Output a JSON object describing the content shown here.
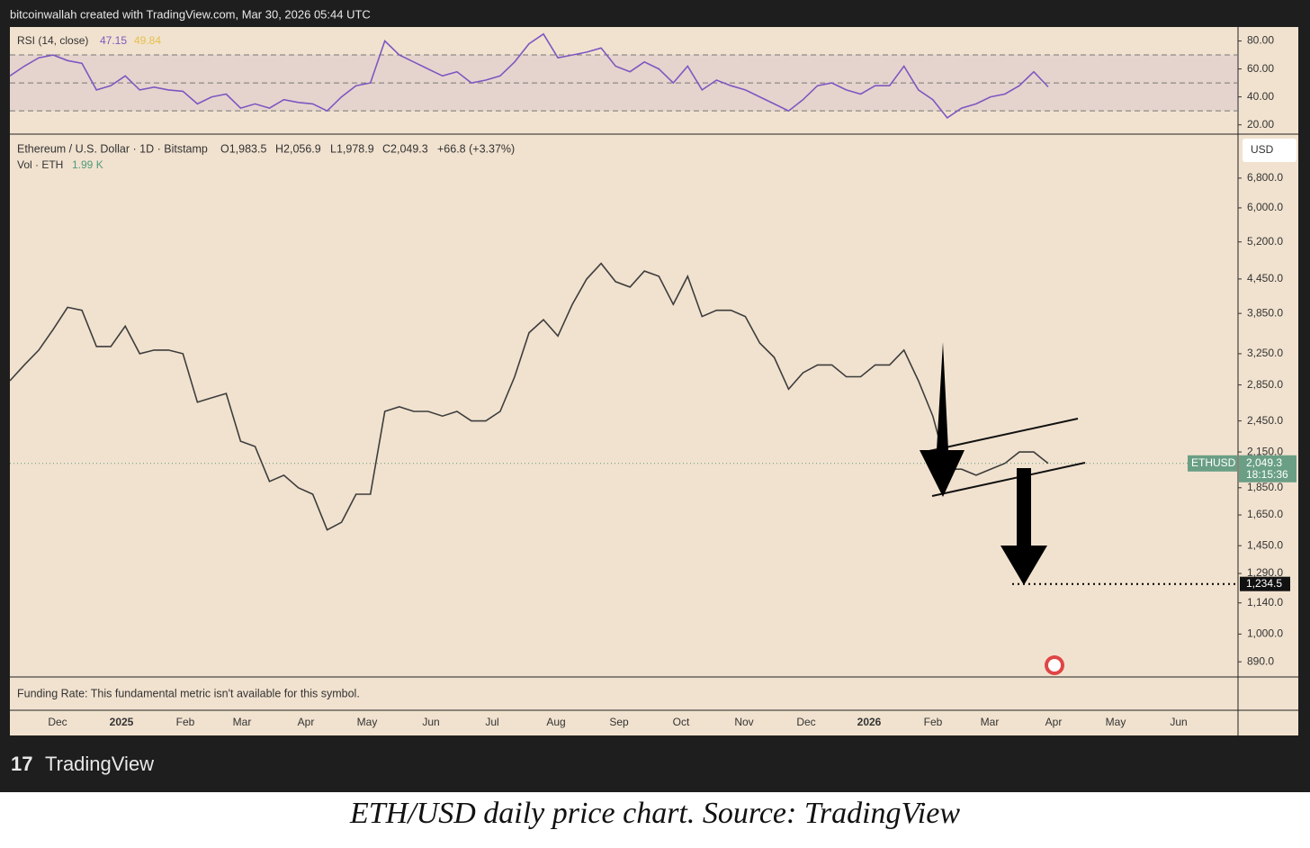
{
  "header": {
    "credit": "bitcoinwallah created with TradingView.com, Mar 30, 2026 05:44 UTC"
  },
  "chart_data": [
    {
      "type": "line",
      "title": "RSI (14, close)",
      "ma_value": 49.84,
      "color": "#7e57c2",
      "ma_color": "#e6c04a",
      "values": [
        55,
        62,
        68,
        70,
        66,
        64,
        45,
        48,
        55,
        45,
        47,
        45,
        44,
        35,
        40,
        42,
        32,
        35,
        32,
        38,
        36,
        35,
        30,
        40,
        48,
        50,
        80,
        70,
        65,
        60,
        55,
        58,
        50,
        52,
        55,
        65,
        78,
        85,
        68,
        70,
        72,
        75,
        62,
        58,
        65,
        60,
        50,
        62,
        45,
        52,
        48,
        45,
        40,
        35,
        30,
        38,
        48,
        50,
        45,
        42,
        48,
        48,
        62,
        45,
        38,
        25,
        32,
        35,
        40,
        42,
        48,
        58,
        47.15
      ],
      "ylim": [
        14,
        90
      ],
      "yticks": [
        {
          "value": 20,
          "label": "20.00"
        },
        {
          "value": 40,
          "label": "40.00"
        },
        {
          "value": 60,
          "label": "60.00"
        },
        {
          "value": 80,
          "label": "80.00"
        }
      ],
      "bands": [
        30,
        50,
        70
      ]
    },
    {
      "type": "line",
      "title": "Ethereum / U.S. Dollar · 1D · Bitstamp",
      "color": "#3d3d3d",
      "log_scale": true,
      "legend": {
        "open": "O1,983.5",
        "high": "H2,056.9",
        "low": "L1,978.9",
        "close": "C2,049.3",
        "change": "+66.8 (+3.37%)"
      },
      "volume_label": "Vol · ETH",
      "volume_value": "1.99 K",
      "currency": "USD",
      "symbol": "ETHUSD",
      "last_price": {
        "value": 2049.3,
        "label": "2,049.3"
      },
      "countdown": "18:15:36",
      "target": {
        "value": 1234.5,
        "label": "1,234.5"
      },
      "values": [
        2900,
        3100,
        3300,
        3600,
        3950,
        3900,
        3350,
        3350,
        3650,
        3250,
        3300,
        3300,
        3250,
        2650,
        2700,
        2750,
        2250,
        2200,
        1900,
        1950,
        1850,
        1800,
        1550,
        1600,
        1800,
        1800,
        2550,
        2600,
        2550,
        2550,
        2500,
        2550,
        2450,
        2450,
        2550,
        2950,
        3550,
        3750,
        3500,
        4000,
        4450,
        4750,
        4400,
        4300,
        4600,
        4500,
        4000,
        4500,
        3800,
        3900,
        3900,
        3800,
        3400,
        3200,
        2800,
        3000,
        3100,
        3100,
        2950,
        2950,
        3100,
        3100,
        3300,
        2900,
        2500,
        2000,
        2000,
        1950,
        2000,
        2050,
        2150,
        2150,
        2049.3
      ],
      "ylim": [
        835,
        8150
      ],
      "yticks": [
        {
          "value": 890,
          "label": "890.0"
        },
        {
          "value": 1000,
          "label": "1,000.0"
        },
        {
          "value": 1140,
          "label": "1,140.0"
        },
        {
          "value": 1290,
          "label": "1,290.0"
        },
        {
          "value": 1450,
          "label": "1,450.0"
        },
        {
          "value": 1650,
          "label": "1,650.0"
        },
        {
          "value": 1850,
          "label": "1,850.0"
        },
        {
          "value": 2150,
          "label": "2,150.0"
        },
        {
          "value": 2450,
          "label": "2,450.0"
        },
        {
          "value": 2850,
          "label": "2,850.0"
        },
        {
          "value": 3250,
          "label": "3,250.0"
        },
        {
          "value": 3850,
          "label": "3,850.0"
        },
        {
          "value": 4450,
          "label": "4,450.0"
        },
        {
          "value": 5200,
          "label": "5,200.0"
        },
        {
          "value": 6000,
          "label": "6,000.0"
        },
        {
          "value": 6800,
          "label": "6,800.0"
        }
      ],
      "x_labels": [
        "Dec",
        "2025",
        "Feb",
        "Mar",
        "Apr",
        "May",
        "Jun",
        "Jul",
        "Aug",
        "Sep",
        "Oct",
        "Nov",
        "Dec",
        "2026",
        "Feb",
        "Mar",
        "Apr",
        "May",
        "Jun"
      ],
      "funding_note": "Funding Rate: This fundamental metric isn't available for this symbol."
    }
  ],
  "footer": {
    "brand": "TradingView",
    "caption": "ETH/USD daily price chart. Source: TradingView"
  }
}
